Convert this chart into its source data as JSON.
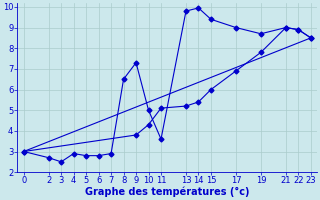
{
  "xlabel": "Graphe des températures (°c)",
  "background_color": "#cce8ec",
  "grid_color": "#aacccc",
  "line_color": "#0000cc",
  "xlim": [
    -0.5,
    23.5
  ],
  "ylim": [
    2,
    10.2
  ],
  "xticks": [
    0,
    2,
    3,
    4,
    5,
    6,
    7,
    8,
    9,
    10,
    11,
    13,
    14,
    15,
    17,
    19,
    21,
    22,
    23
  ],
  "yticks": [
    2,
    3,
    4,
    5,
    6,
    7,
    8,
    9,
    10
  ],
  "line1_x": [
    0,
    2,
    3,
    4,
    5,
    6,
    7,
    8,
    9,
    10,
    11,
    13,
    14,
    15,
    17,
    19,
    21,
    22,
    23
  ],
  "line1_y": [
    3.0,
    2.7,
    2.5,
    2.9,
    2.8,
    2.8,
    2.9,
    6.5,
    7.3,
    5.0,
    3.6,
    9.8,
    9.95,
    9.4,
    9.0,
    8.7,
    9.0,
    8.9,
    8.5
  ],
  "line2_x": [
    0,
    9,
    10,
    11,
    13,
    14,
    15,
    17,
    19,
    21,
    22,
    23
  ],
  "line2_y": [
    3.0,
    3.8,
    4.3,
    5.1,
    5.2,
    5.4,
    6.0,
    6.9,
    7.8,
    9.0,
    8.9,
    8.5
  ],
  "line3_x": [
    0,
    23
  ],
  "line3_y": [
    3.0,
    8.5
  ],
  "marker_size": 2.5,
  "xlabel_fontsize": 7,
  "tick_fontsize": 6
}
